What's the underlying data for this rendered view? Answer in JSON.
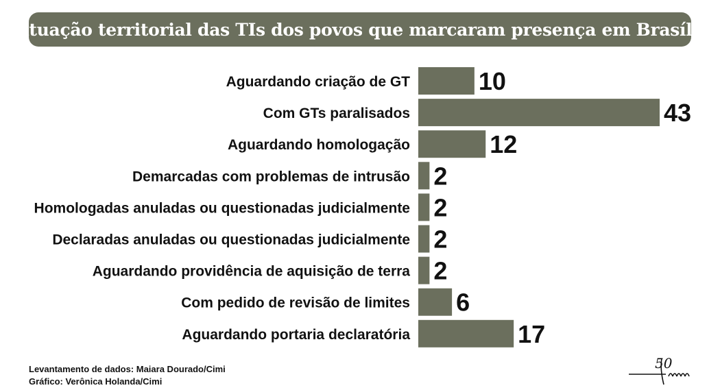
{
  "title": "Situação territorial das TIs dos povos que marcaram presença em Brasília",
  "credits": {
    "line1": "Levantamento de dados: Maiara Dourado/Cimi",
    "line2": "Gráfico: Verônica Holanda/Cimi"
  },
  "logo": {
    "text": "50",
    "icon": "cimi-50-years-logo"
  },
  "colors": {
    "bar": "#6b6f5d",
    "title_bg": "#6b6f5d",
    "text": "#111111"
  },
  "chart_data": {
    "type": "bar",
    "orientation": "horizontal",
    "title": "Situação territorial das TIs dos povos que marcaram presença em Brasília",
    "categories": [
      "Aguardando criação de GT",
      "Com GTs paralisados",
      "Aguardando homologação",
      "Demarcadas com problemas de intrusão",
      "Homologadas anuladas ou questionadas judicialmente",
      "Declaradas anuladas ou questionadas judicialmente",
      "Aguardando providência de aquisição de terra",
      "Com pedido de revisão de limites",
      "Aguardando portaria declaratória"
    ],
    "values": [
      10,
      43,
      12,
      2,
      2,
      2,
      2,
      6,
      17
    ],
    "xlim": [
      0,
      43
    ],
    "grid": false,
    "legend": "none"
  }
}
